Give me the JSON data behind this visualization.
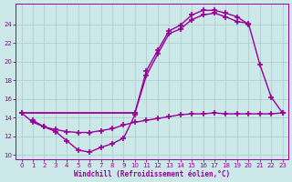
{
  "bg_color": "#cce8e8",
  "line_color": "#990099",
  "grid_color": "#aacccc",
  "xlabel": "Windchill (Refroidissement éolien,°C)",
  "xlim": [
    -0.5,
    23.5
  ],
  "ylim": [
    9.5,
    26.2
  ],
  "yticks": [
    10,
    12,
    14,
    16,
    18,
    20,
    22,
    24
  ],
  "xticks": [
    0,
    1,
    2,
    3,
    4,
    5,
    6,
    7,
    8,
    9,
    10,
    11,
    12,
    13,
    14,
    15,
    16,
    17,
    18,
    19,
    20,
    21,
    22,
    23
  ],
  "marker": "+",
  "markersize": 4,
  "linewidth": 1.0,
  "line_dip_x": [
    1,
    2,
    3,
    4,
    5,
    6,
    7,
    8,
    9,
    10
  ],
  "line_dip_y": [
    13.7,
    13.0,
    12.5,
    11.5,
    10.5,
    10.3,
    10.8,
    11.2,
    11.8,
    14.3
  ],
  "line_flat_x": [
    0,
    1,
    2,
    3,
    4,
    5,
    6,
    7,
    8,
    9,
    10,
    11,
    12,
    13,
    14,
    15,
    16,
    17,
    18,
    19,
    20,
    21,
    22,
    23
  ],
  "line_flat_y": [
    14.5,
    13.5,
    13.0,
    12.7,
    12.5,
    12.4,
    12.4,
    12.6,
    12.8,
    13.2,
    13.5,
    13.7,
    13.9,
    14.1,
    14.3,
    14.4,
    14.4,
    14.5,
    14.4,
    14.4,
    14.4,
    14.4,
    14.4,
    14.5
  ],
  "line_upper1_x": [
    0,
    10,
    11,
    12,
    13,
    14,
    15,
    16,
    17,
    18,
    19,
    20,
    21,
    22,
    23
  ],
  "line_upper1_y": [
    14.5,
    14.5,
    18.5,
    20.8,
    23.0,
    23.5,
    24.5,
    25.0,
    25.2,
    24.8,
    24.3,
    24.1,
    19.7,
    16.2,
    14.5
  ],
  "line_upper2_x": [
    0,
    10,
    11,
    12,
    13,
    14,
    15,
    16,
    17,
    18,
    19,
    20
  ],
  "line_upper2_y": [
    14.5,
    14.5,
    19.0,
    21.2,
    23.3,
    23.9,
    25.0,
    25.5,
    25.5,
    25.2,
    24.8,
    24.0
  ]
}
